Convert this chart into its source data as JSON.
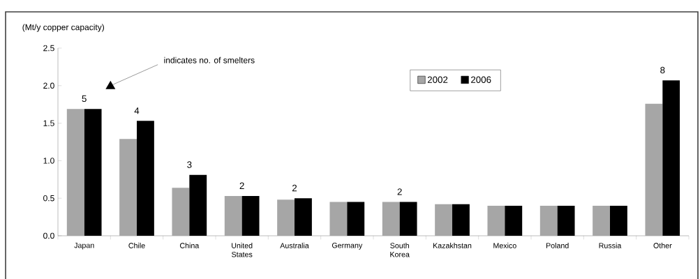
{
  "chart_data": {
    "type": "bar",
    "ylabel": "(Mt/y copper capacity)",
    "categories": [
      "Japan",
      "Chile",
      "China",
      "United States",
      "Australia",
      "Germany",
      "South Korea",
      "Kazakhstan",
      "Mexico",
      "Poland",
      "Russia",
      "Other"
    ],
    "series": [
      {
        "name": "2002",
        "color": "#a6a6a6",
        "values": [
          1.69,
          1.29,
          0.64,
          0.53,
          0.48,
          0.45,
          0.45,
          0.42,
          0.4,
          0.4,
          0.4,
          1.76
        ]
      },
      {
        "name": "2006",
        "color": "#000000",
        "values": [
          1.69,
          1.53,
          0.81,
          0.53,
          0.5,
          0.45,
          0.45,
          0.42,
          0.4,
          0.4,
          0.4,
          2.07
        ]
      }
    ],
    "ylim": [
      0,
      2.5
    ],
    "yticks": [
      {
        "value": 0,
        "label": "0.0"
      },
      {
        "value": 0.5,
        "label": "0.5"
      },
      {
        "value": 1,
        "label": "1.0"
      },
      {
        "value": 1.5,
        "label": "1.5"
      },
      {
        "value": 2,
        "label": "2.0"
      },
      {
        "value": 2.5,
        "label": "2.5"
      }
    ],
    "legend": "top",
    "grid": false,
    "annotations": [
      "indicates no. of smelters",
      {
        "text": "5",
        "x": "Japan",
        "y": 1.69
      },
      {
        "text": "4",
        "x": "Chile",
        "y": 1.53
      },
      {
        "text": "3",
        "x": "China",
        "y": 0.81
      },
      {
        "text": "2",
        "x": "United States",
        "y": 0.53
      },
      {
        "text": "2",
        "x": "Australia",
        "y": 0.5
      },
      {
        "text": "2",
        "x": "South Korea",
        "y": 0.45
      },
      {
        "text": "8",
        "x": "Other",
        "y": 2.07
      }
    ]
  }
}
